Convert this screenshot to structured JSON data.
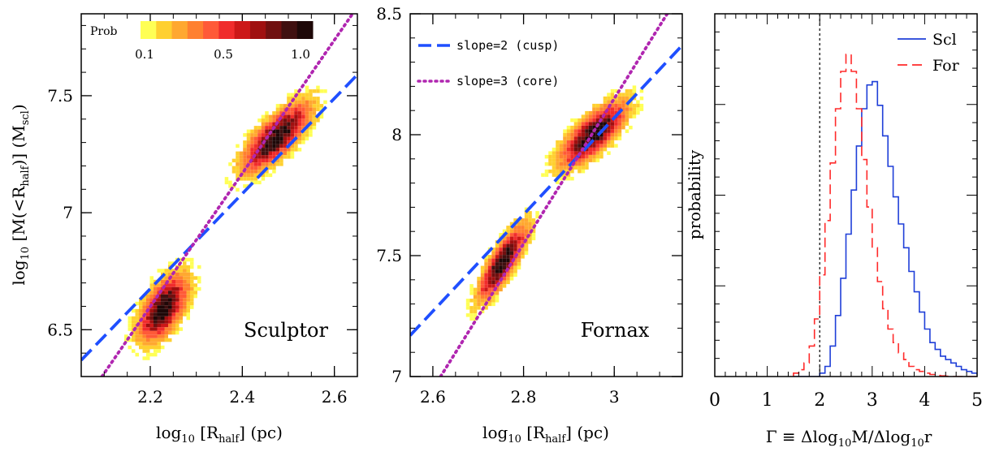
{
  "colors": {
    "cusp_line": "#1f4fff",
    "core_line": "#b026b0",
    "scl_hist": "#1f3fd8",
    "for_hist": "#ff2a2a",
    "colorbar": [
      "#ffff55",
      "#ffd030",
      "#ffa830",
      "#ff8030",
      "#ff5a38",
      "#f02c2c",
      "#cc1818",
      "#a01010",
      "#701010",
      "#401010",
      "#1e0808"
    ]
  },
  "chart_data": [
    {
      "type": "heatmap",
      "panel": "sculptor",
      "label": "Sculptor",
      "xlabel_main": "log",
      "xlabel_sub": "10",
      "xlabel_rest1": " [R",
      "xlabel_sub2": "half",
      "xlabel_rest2": "] (pc)",
      "ylabel_pre": "log",
      "ylabel_sub": "10",
      "ylabel_mid": " [M(<R",
      "ylabel_sub2": "half",
      "ylabel_mid2": ")] (M",
      "ylabel_sub3": "scl",
      "ylabel_end": ")",
      "xlim": [
        2.05,
        2.65
      ],
      "ylim": [
        6.3,
        7.85
      ],
      "xticks": [
        2.2,
        2.4,
        2.6
      ],
      "xtick_labels": [
        "2.2",
        "2.4",
        "2.6"
      ],
      "yticks": [
        6.5,
        7.0,
        7.5
      ],
      "ytick_labels": [
        "6.5",
        "7",
        "7.5"
      ],
      "colorbar": {
        "title": "Prob",
        "tick_labels": [
          "0.1",
          "0.5",
          "1.0"
        ],
        "tick_values": [
          0.1,
          0.5,
          1.0
        ]
      },
      "blobs": [
        {
          "cx": 2.225,
          "cy": 6.6,
          "sx": 0.03,
          "sy": 0.1,
          "rho": 0.55
        },
        {
          "cx": 2.47,
          "cy": 7.33,
          "sx": 0.05,
          "sy": 0.1,
          "rho": 0.75
        }
      ],
      "lines": [
        {
          "name": "slope=2 (cusp)",
          "x": [
            2.05,
            2.65
          ],
          "y": [
            6.37,
            7.59
          ]
        },
        {
          "name": "slope=3 (core)",
          "x": [
            2.095,
            2.65
          ],
          "y": [
            6.3,
            7.88
          ]
        }
      ]
    },
    {
      "type": "heatmap",
      "panel": "fornax",
      "label": "Fornax",
      "xlabel_main": "log",
      "xlabel_sub": "10",
      "xlabel_rest1": " [R",
      "xlabel_sub2": "half",
      "xlabel_rest2": "] (pc)",
      "xlim": [
        2.55,
        3.15
      ],
      "ylim": [
        7.0,
        8.5
      ],
      "xticks": [
        2.6,
        2.8,
        3.0
      ],
      "xtick_labels": [
        "2.6",
        "2.8",
        "3"
      ],
      "yticks": [
        7.0,
        7.5,
        8.0,
        8.5
      ],
      "ytick_labels": [
        "7",
        "7.5",
        "8",
        "8.5"
      ],
      "legend": [
        {
          "label": "slope=2 (cusp)",
          "style": "dashed"
        },
        {
          "label": "slope=3 (core)",
          "style": "dotted"
        }
      ],
      "blobs": [
        {
          "cx": 2.75,
          "cy": 7.48,
          "sx": 0.035,
          "sy": 0.11,
          "rho": 0.8
        },
        {
          "cx": 2.95,
          "cy": 8.01,
          "sx": 0.05,
          "sy": 0.09,
          "rho": 0.75
        }
      ],
      "lines": [
        {
          "name": "slope=2 (cusp)",
          "x": [
            2.55,
            3.15
          ],
          "y": [
            7.17,
            8.37
          ]
        },
        {
          "name": "slope=3 (core)",
          "x": [
            2.617,
            3.15
          ],
          "y": [
            7.0,
            8.6
          ]
        }
      ]
    },
    {
      "type": "line",
      "panel": "histogram",
      "xlabel": "Γ ≡ Δlog",
      "xlabel_sub": "10",
      "xlabel_mid": "M/Δlog",
      "xlabel_sub2": "10",
      "xlabel_end": "r",
      "ylabel": "probability",
      "xlim": [
        0,
        5
      ],
      "ylim": [
        0,
        1.07
      ],
      "xticks": [
        0,
        1,
        2,
        3,
        4,
        5
      ],
      "xtick_labels": [
        "0",
        "1",
        "2",
        "3",
        "4",
        "5"
      ],
      "vline_x": 2.0,
      "bin_width": 0.1,
      "bin_start": 1.5,
      "series": [
        {
          "name": "Scl",
          "style": "solid",
          "values": [
            0,
            0,
            0,
            0,
            0,
            0.01,
            0.03,
            0.09,
            0.18,
            0.29,
            0.42,
            0.55,
            0.68,
            0.79,
            0.86,
            0.87,
            0.8,
            0.71,
            0.62,
            0.53,
            0.45,
            0.38,
            0.31,
            0.25,
            0.19,
            0.14,
            0.1,
            0.08,
            0.06,
            0.05,
            0.04,
            0.03,
            0.02,
            0.015,
            0.01,
            0.007
          ]
        },
        {
          "name": "For",
          "style": "dashed",
          "values": [
            0.01,
            0.02,
            0.04,
            0.09,
            0.17,
            0.3,
            0.46,
            0.63,
            0.79,
            0.9,
            0.95,
            0.9,
            0.79,
            0.64,
            0.5,
            0.38,
            0.28,
            0.2,
            0.14,
            0.1,
            0.07,
            0.05,
            0.03,
            0.02,
            0.015,
            0.01,
            0.006,
            0.003,
            0.002,
            0.001,
            0,
            0,
            0,
            0,
            0,
            0
          ]
        }
      ]
    }
  ]
}
